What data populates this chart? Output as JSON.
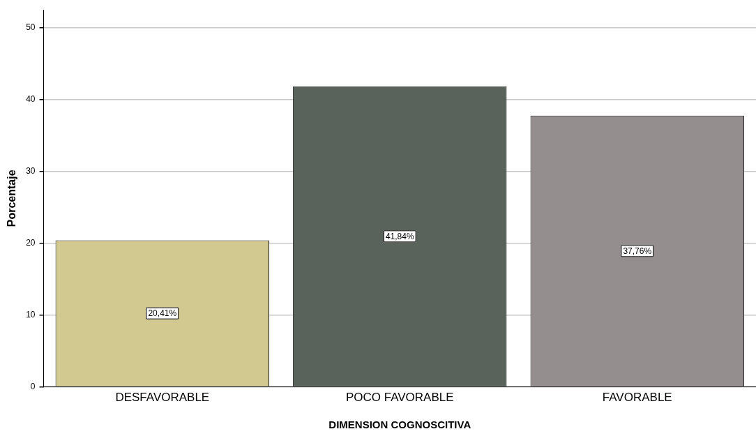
{
  "chart_data": {
    "type": "bar",
    "xlabel": "DIMENSION COGNOSCITIVA",
    "ylabel": "Porcentaje",
    "categories": [
      "DESFAVORABLE",
      "POCO FAVORABLE",
      "FAVORABLE"
    ],
    "values": [
      20.41,
      41.84,
      37.76
    ],
    "colors": [
      "#d1c98f",
      "#5a625c",
      "#948f8e"
    ],
    "value_labels": [
      "20,41%",
      "41,84%",
      "37,76%"
    ],
    "ylim": [
      0,
      52.5
    ],
    "yticks": [
      0,
      10,
      20,
      30,
      40,
      50
    ],
    "grid": "y",
    "legend": false
  }
}
